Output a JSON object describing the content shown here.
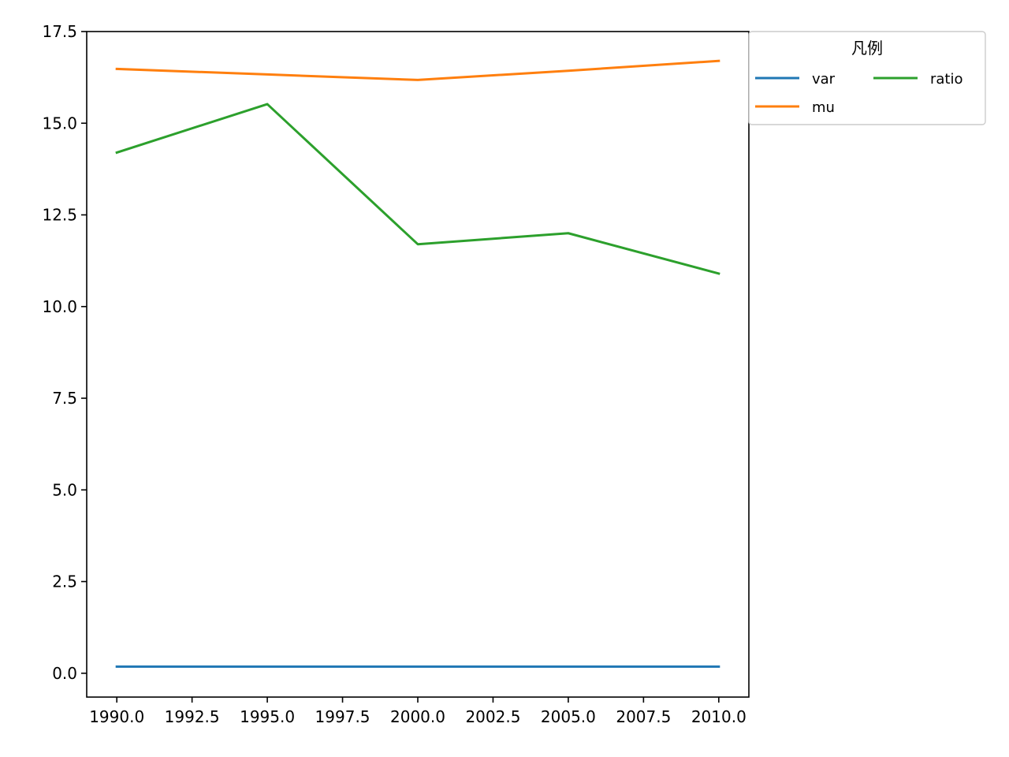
{
  "chart_data": {
    "type": "line",
    "title": "",
    "xlabel": "",
    "ylabel": "",
    "x": [
      1990,
      1995,
      2000,
      2005,
      2010
    ],
    "xlim": [
      1989,
      2011
    ],
    "ylim": [
      -0.65,
      17.5
    ],
    "xticks": [
      1990.0,
      1992.5,
      1995.0,
      1997.5,
      2000.0,
      2002.5,
      2005.0,
      2007.5,
      2010.0
    ],
    "xtick_labels": [
      "1990.0",
      "1992.5",
      "1995.0",
      "1997.5",
      "2000.0",
      "2002.5",
      "2005.0",
      "2007.5",
      "2010.0"
    ],
    "yticks": [
      0.0,
      2.5,
      5.0,
      7.5,
      10.0,
      12.5,
      15.0,
      17.5
    ],
    "ytick_labels": [
      "0.0",
      "2.5",
      "5.0",
      "7.5",
      "10.0",
      "12.5",
      "15.0",
      "17.5"
    ],
    "grid": false,
    "legend": {
      "title": "凡例",
      "placement": "outside top-right",
      "columns": 2
    },
    "series": [
      {
        "name": "var",
        "color": "#1f77b4",
        "values": [
          0.18,
          0.18,
          0.18,
          0.18,
          0.18
        ]
      },
      {
        "name": "mu",
        "color": "#ff7f0e",
        "values": [
          16.48,
          16.33,
          16.18,
          16.43,
          16.7
        ]
      },
      {
        "name": "ratio",
        "color": "#2ca02c",
        "values": [
          14.2,
          15.52,
          11.7,
          12.0,
          10.9
        ]
      }
    ]
  }
}
